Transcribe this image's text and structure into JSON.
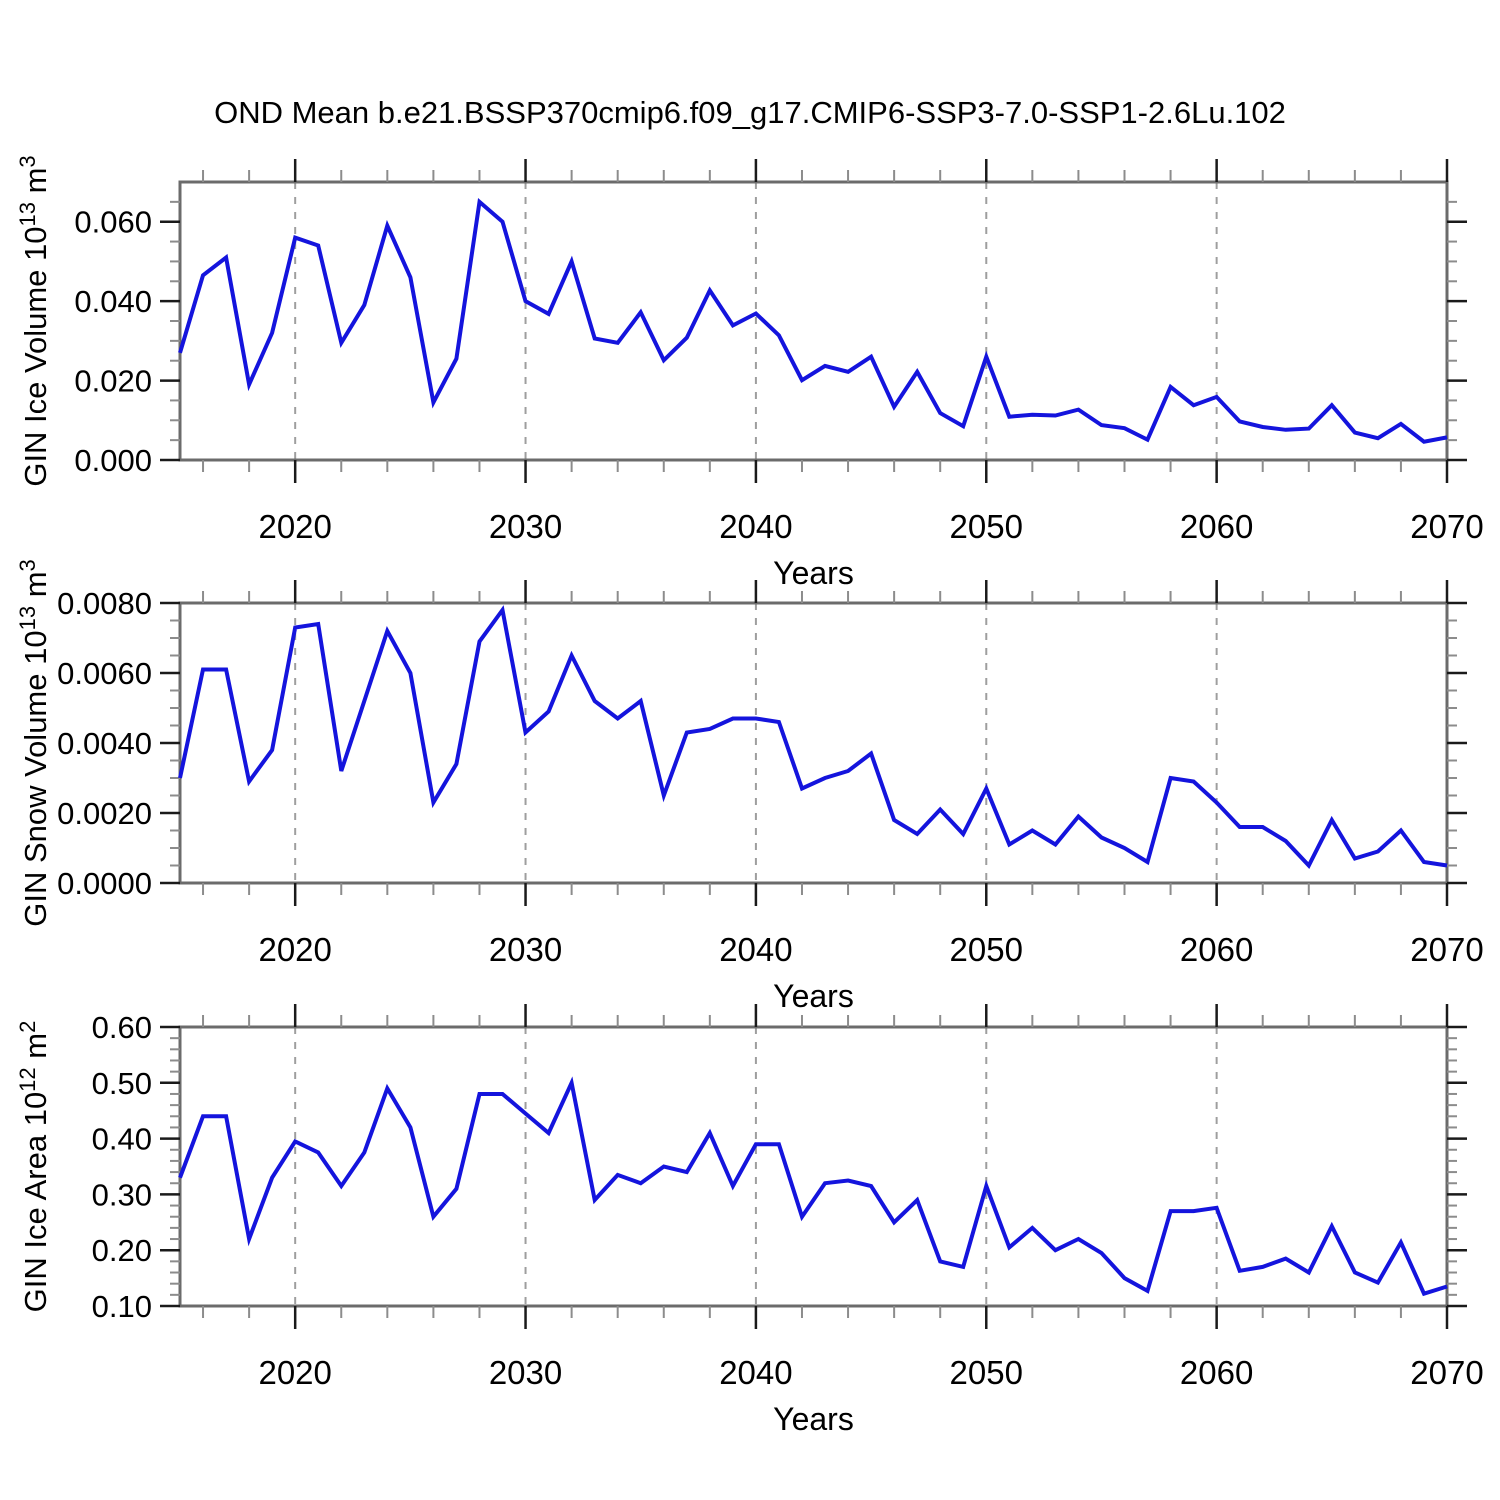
{
  "figure": {
    "title": "OND Mean b.e21.BSSP370cmip6.f09_g17.CMIP6-SSP3-7.0-SSP1-2.6Lu.102",
    "background": "#ffffff"
  },
  "style": {
    "line_color": "#1414dd",
    "frame_color": "#6b6b6b",
    "major_tick_color": "#1a1a1a",
    "minor_tick_color": "#8c8c8c",
    "grid_color": "#9e9e9e",
    "text_color": "#000000"
  },
  "x_axis": {
    "label": "Years",
    "xlim": [
      2015,
      2070
    ],
    "major_ticks": [
      2020,
      2030,
      2040,
      2050,
      2060,
      2070
    ],
    "minor_step": 2,
    "grid_years": [
      2020,
      2030,
      2040,
      2050,
      2060
    ],
    "years": [
      2015,
      2016,
      2017,
      2018,
      2019,
      2020,
      2021,
      2022,
      2023,
      2024,
      2025,
      2026,
      2027,
      2028,
      2029,
      2030,
      2031,
      2032,
      2033,
      2034,
      2035,
      2036,
      2037,
      2038,
      2039,
      2040,
      2041,
      2042,
      2043,
      2044,
      2045,
      2046,
      2047,
      2048,
      2049,
      2050,
      2051,
      2052,
      2053,
      2054,
      2055,
      2056,
      2057,
      2058,
      2059,
      2060,
      2061,
      2062,
      2063,
      2064,
      2065,
      2066,
      2067,
      2068,
      2069,
      2070
    ]
  },
  "chart_data": [
    {
      "id": "gin-ice-volume",
      "type": "line",
      "ylabel": "GIN Ice Volume 10^13 m^3",
      "ylabel_parts": [
        "GIN Ice Volume 10",
        "13",
        " m",
        "3"
      ],
      "ylim": [
        0,
        0.07
      ],
      "y_major_step": 0.02,
      "y_minor_step": 0.005,
      "y_decimals": 3,
      "values": [
        0.027,
        0.0465,
        0.051,
        0.019,
        0.032,
        0.056,
        0.054,
        0.0295,
        0.039,
        0.059,
        0.046,
        0.0145,
        0.0255,
        0.065,
        0.06,
        0.04,
        0.0368,
        0.05,
        0.0306,
        0.0295,
        0.0372,
        0.0251,
        0.0308,
        0.0427,
        0.0339,
        0.0369,
        0.0314,
        0.0201,
        0.0237,
        0.0222,
        0.026,
        0.0134,
        0.0222,
        0.0118,
        0.0085,
        0.026,
        0.0109,
        0.0114,
        0.0112,
        0.0127,
        0.0088,
        0.008,
        0.0051,
        0.0184,
        0.0138,
        0.0159,
        0.0097,
        0.0083,
        0.0076,
        0.0079,
        0.0138,
        0.0069,
        0.0055,
        0.0091,
        0.0046,
        0.0057
      ]
    },
    {
      "id": "gin-snow-volume",
      "type": "line",
      "ylabel": "GIN Snow Volume 10^13 m^3",
      "ylabel_parts": [
        "GIN Snow Volume 10",
        "13",
        " m",
        "3"
      ],
      "ylim": [
        0,
        0.008
      ],
      "y_major_step": 0.002,
      "y_minor_step": 0.0005,
      "y_decimals": 4,
      "values": [
        0.003,
        0.0061,
        0.0061,
        0.0029,
        0.0038,
        0.0073,
        0.0074,
        0.0032,
        0.0052,
        0.0072,
        0.006,
        0.0023,
        0.0034,
        0.0069,
        0.0078,
        0.0043,
        0.0049,
        0.0065,
        0.0052,
        0.0047,
        0.0052,
        0.0025,
        0.0043,
        0.0044,
        0.0047,
        0.0047,
        0.0046,
        0.0027,
        0.003,
        0.0032,
        0.0037,
        0.0018,
        0.0014,
        0.0021,
        0.0014,
        0.0027,
        0.0011,
        0.0015,
        0.0011,
        0.0019,
        0.0013,
        0.001,
        0.0006,
        0.003,
        0.0029,
        0.0023,
        0.0016,
        0.0016,
        0.0012,
        0.0005,
        0.0018,
        0.0007,
        0.0009,
        0.0015,
        0.0006,
        0.0005
      ]
    },
    {
      "id": "gin-ice-area",
      "type": "line",
      "ylabel": "GIN Ice Area 10^12 m^2",
      "ylabel_parts": [
        "GIN Ice Area 10",
        "12",
        " m",
        "2"
      ],
      "ylim": [
        0.1,
        0.6
      ],
      "y_major_step": 0.1,
      "y_minor_step": 0.02,
      "y_decimals": 2,
      "values": [
        0.33,
        0.44,
        0.44,
        0.22,
        0.33,
        0.395,
        0.375,
        0.315,
        0.375,
        0.49,
        0.42,
        0.26,
        0.31,
        0.48,
        0.48,
        0.445,
        0.41,
        0.5,
        0.29,
        0.335,
        0.32,
        0.35,
        0.34,
        0.41,
        0.315,
        0.39,
        0.39,
        0.26,
        0.32,
        0.325,
        0.315,
        0.25,
        0.29,
        0.18,
        0.17,
        0.315,
        0.205,
        0.24,
        0.2,
        0.22,
        0.195,
        0.15,
        0.127,
        0.27,
        0.27,
        0.276,
        0.163,
        0.17,
        0.185,
        0.16,
        0.243,
        0.16,
        0.142,
        0.214,
        0.122,
        0.135
      ]
    }
  ]
}
